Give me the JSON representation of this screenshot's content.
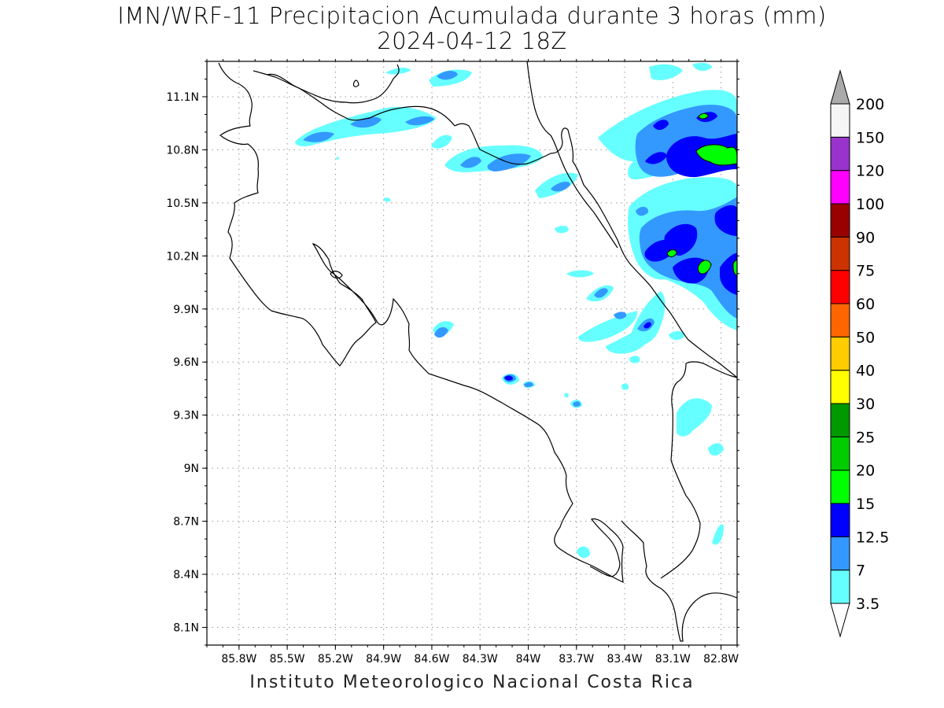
{
  "title": {
    "line1": "IMN/WRF-11 Precipitacion Acumulada durante 3 horas (mm)",
    "line2": "2024-04-12 18Z"
  },
  "footer": "Instituto Meteorologico Nacional Costa Rica",
  "map": {
    "lon_range": [
      -86.0,
      -82.7
    ],
    "lat_range": [
      8.0,
      11.3
    ],
    "x_ticks": [
      "85.8W",
      "85.5W",
      "85.2W",
      "84.9W",
      "84.6W",
      "84.3W",
      "84W",
      "83.7W",
      "83.4W",
      "83.1W",
      "82.8W"
    ],
    "x_tick_values": [
      -85.8,
      -85.5,
      -85.2,
      -84.9,
      -84.6,
      -84.3,
      -84.0,
      -83.7,
      -83.4,
      -83.1,
      -82.8
    ],
    "y_ticks": [
      "11.1N",
      "10.8N",
      "10.5N",
      "10.2N",
      "9.9N",
      "9.6N",
      "9.3N",
      "9N",
      "8.7N",
      "8.4N",
      "8.1N"
    ],
    "y_tick_values": [
      11.1,
      10.8,
      10.5,
      10.2,
      9.9,
      9.6,
      9.3,
      9.0,
      8.7,
      8.4,
      8.1
    ],
    "grid": "dotted"
  },
  "colorbar": {
    "levels": [
      "3.5",
      "7",
      "12.5",
      "15",
      "20",
      "25",
      "30",
      "40",
      "50",
      "60",
      "75",
      "90",
      "100",
      "120",
      "150",
      "200"
    ],
    "colors": [
      "#66ffff",
      "#3399ff",
      "#0000ff",
      "#00ff00",
      "#00cc00",
      "#009900",
      "#ffff00",
      "#ffcc00",
      "#ff6600",
      "#ff0000",
      "#cc3300",
      "#990000",
      "#ff00ff",
      "#9933cc",
      "#f5f5f5"
    ],
    "over_color": "#aaaaaa",
    "under_color": "#ffffff"
  }
}
